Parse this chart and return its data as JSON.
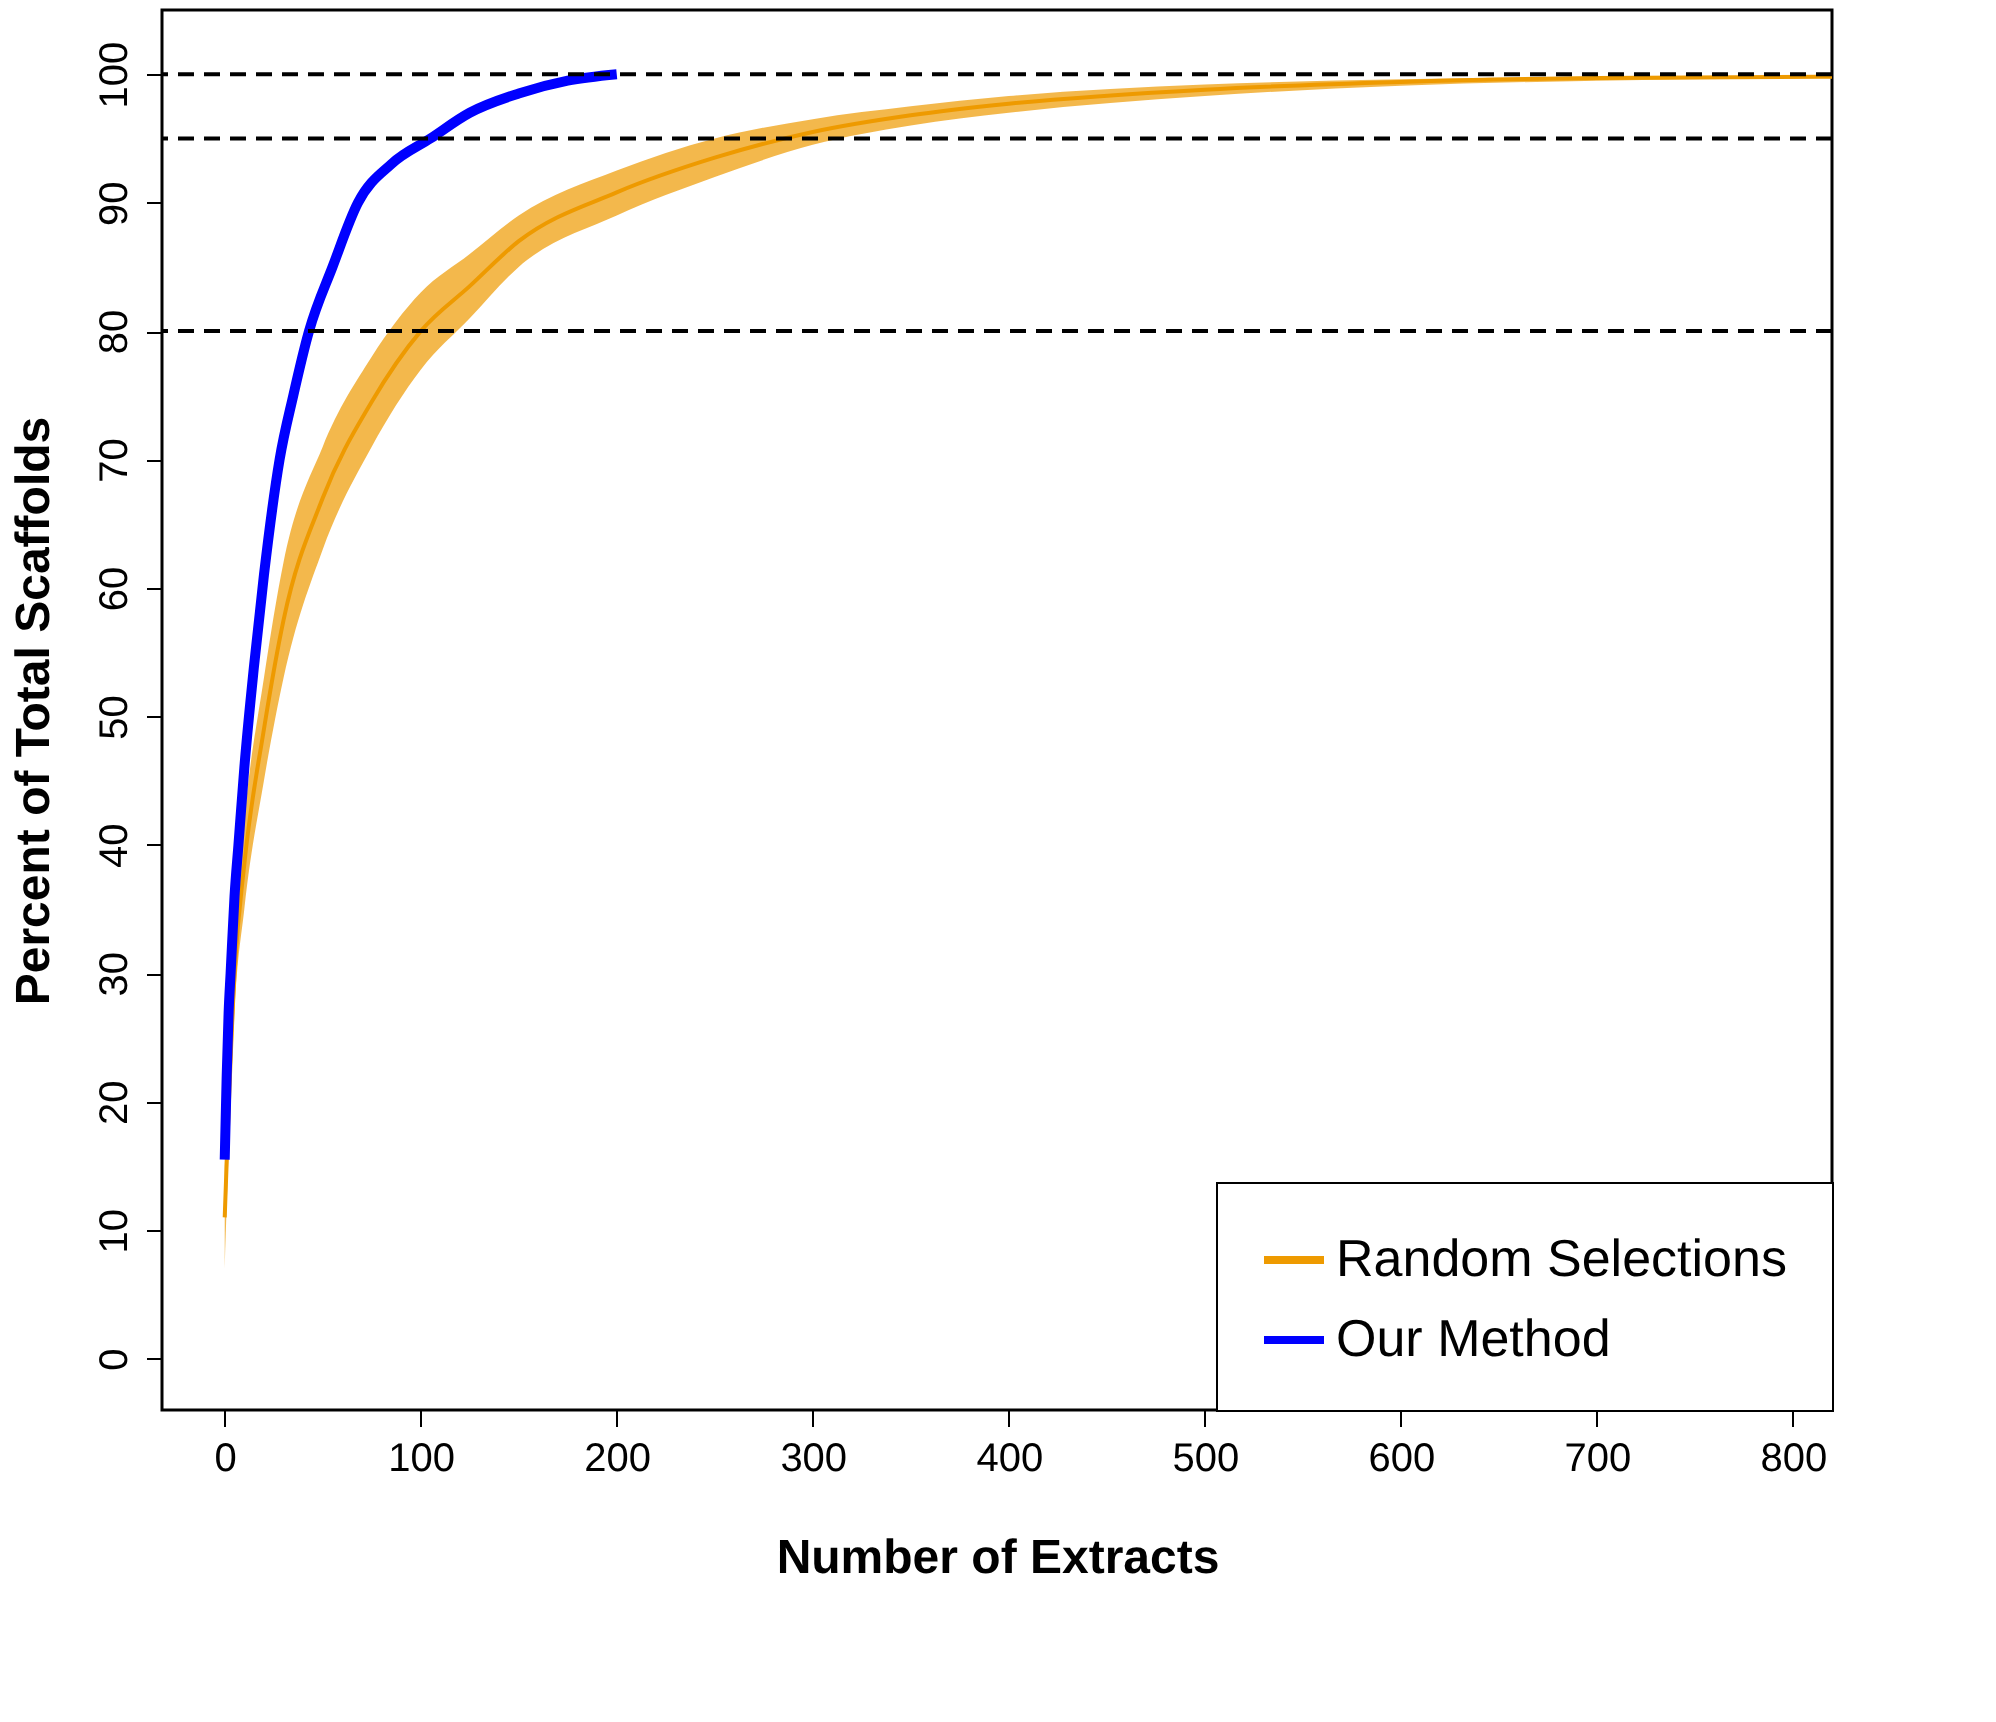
{
  "chart_data": {
    "type": "line",
    "xlabel": "Number of Extracts",
    "ylabel": "Percent of Total Scaffolds",
    "xlim": [
      -32,
      820
    ],
    "xticks": [
      0,
      100,
      200,
      300,
      400,
      500,
      600,
      700,
      800
    ],
    "ylim": [
      -4,
      105
    ],
    "yticks": [
      0,
      10,
      20,
      30,
      40,
      50,
      60,
      70,
      80,
      90,
      100
    ],
    "grid": false,
    "legend": "bottom right",
    "line_style": "solid",
    "marker": "none",
    "ref_lines": [
      {
        "axis": "y",
        "value": 80,
        "label": null,
        "color": "#000000",
        "line_style": "dashed"
      },
      {
        "axis": "y",
        "value": 95,
        "label": null,
        "color": "#000000",
        "line_style": "dashed"
      },
      {
        "axis": "y",
        "value": 100,
        "label": null,
        "color": "#000000",
        "line_style": "dashed"
      }
    ],
    "series": [
      {
        "name": "Random Selections",
        "color": "#ee9a00",
        "x": [
          0,
          5,
          10,
          20,
          30,
          50,
          75,
          100,
          125,
          150,
          200,
          250,
          300,
          350,
          400,
          500,
          600,
          700,
          820
        ],
        "values": [
          11,
          30,
          38.5,
          49,
          57.5,
          67,
          74.5,
          80,
          83.5,
          87,
          90.8,
          93.5,
          95.5,
          96.8,
          97.7,
          98.8,
          99.4,
          99.7,
          99.8
        ],
        "lower": [
          7,
          27,
          35,
          45,
          53,
          63,
          71,
          77,
          81,
          85,
          89,
          92,
          94.5,
          96,
          97,
          98.3,
          99.1,
          99.5,
          99.7
        ],
        "upper": [
          15,
          33,
          42,
          53,
          62,
          71,
          78,
          83,
          86,
          89,
          92.5,
          95,
          96.5,
          97.5,
          98.3,
          99.2,
          99.6,
          99.8,
          99.9
        ]
      },
      {
        "name": "Our Method",
        "color": "#0000ff",
        "x": [
          0,
          1,
          2,
          3,
          5,
          7,
          10,
          15,
          20,
          28,
          35,
          43,
          55,
          68,
          85,
          105,
          125,
          150,
          175,
          200
        ],
        "values": [
          15.5,
          22,
          27,
          30,
          36,
          40,
          46,
          54,
          61,
          70,
          75,
          80,
          85,
          90,
          93,
          95,
          97,
          98.5,
          99.5,
          100
        ]
      }
    ]
  }
}
